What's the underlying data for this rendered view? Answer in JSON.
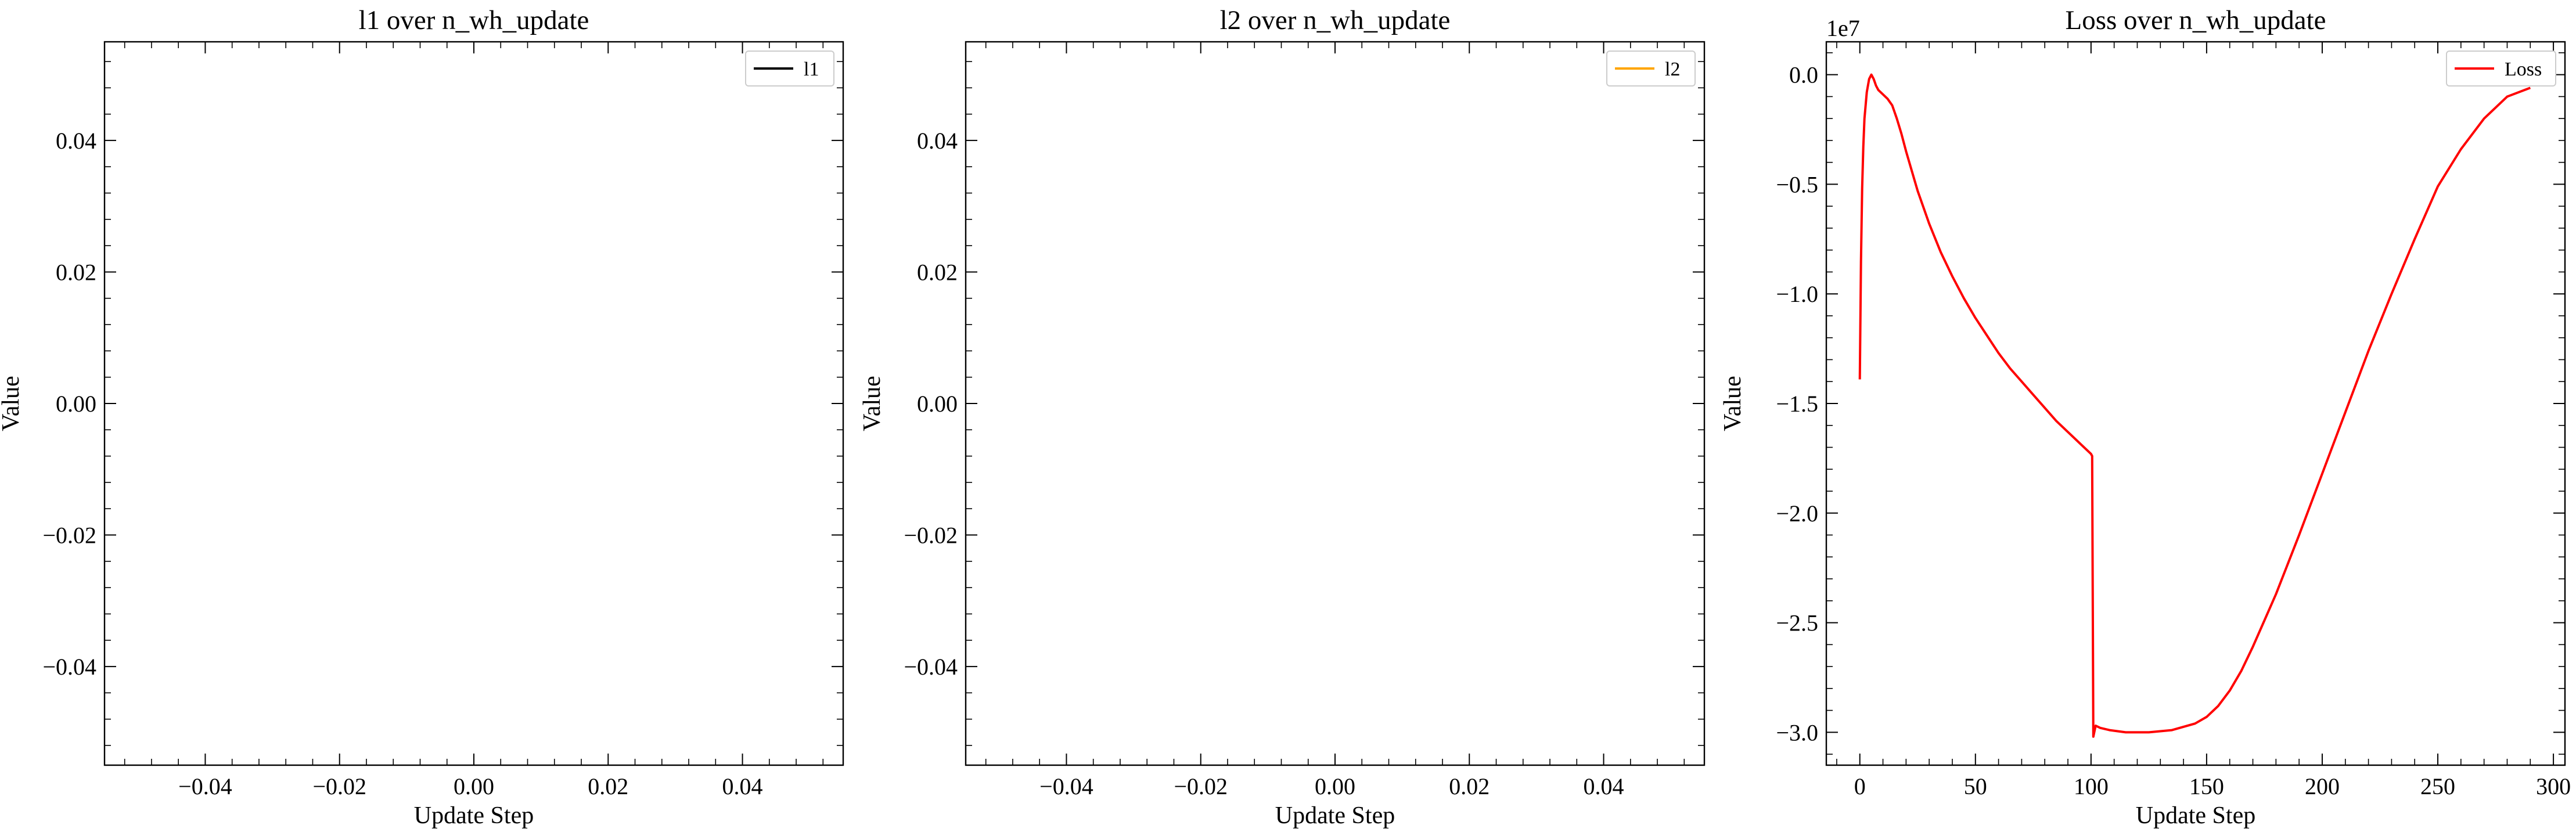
{
  "chart_data": [
    {
      "type": "line",
      "title": "l1 over n_wh_update",
      "xlabel": "Update Step",
      "ylabel": "Value",
      "xlim": [
        -0.055,
        0.055
      ],
      "ylim": [
        -0.055,
        0.055
      ],
      "xticks": [
        -0.04,
        -0.02,
        0.0,
        0.02,
        0.04
      ],
      "xtick_labels": [
        "−0.04",
        "−0.02",
        "0.00",
        "0.02",
        "0.04"
      ],
      "yticks": [
        -0.04,
        -0.02,
        0.0,
        0.02,
        0.04
      ],
      "ytick_labels": [
        "−0.04",
        "−0.02",
        "0.00",
        "0.02",
        "0.04"
      ],
      "ytick_offset": "",
      "legend_position": "upper right",
      "series": [
        {
          "name": "l1",
          "color": "#000000",
          "x": [],
          "y": []
        }
      ]
    },
    {
      "type": "line",
      "title": "l2 over n_wh_update",
      "xlabel": "Update Step",
      "ylabel": "Value",
      "xlim": [
        -0.055,
        0.055
      ],
      "ylim": [
        -0.055,
        0.055
      ],
      "xticks": [
        -0.04,
        -0.02,
        0.0,
        0.02,
        0.04
      ],
      "xtick_labels": [
        "−0.04",
        "−0.02",
        "0.00",
        "0.02",
        "0.04"
      ],
      "yticks": [
        -0.04,
        -0.02,
        0.0,
        0.02,
        0.04
      ],
      "ytick_labels": [
        "−0.04",
        "−0.02",
        "0.00",
        "0.02",
        "0.04"
      ],
      "ytick_offset": "",
      "legend_position": "upper right",
      "series": [
        {
          "name": "l2",
          "color": "#ffa500",
          "x": [],
          "y": []
        }
      ]
    },
    {
      "type": "line",
      "title": "Loss over n_wh_update",
      "xlabel": "Update Step",
      "ylabel": "Value",
      "xlim": [
        -14.5,
        305
      ],
      "ylim": [
        -31.5,
        1.5
      ],
      "xticks": [
        0,
        50,
        100,
        150,
        200,
        250,
        300
      ],
      "xtick_labels": [
        "0",
        "50",
        "100",
        "150",
        "200",
        "250",
        "300"
      ],
      "yticks": [
        0,
        -5,
        -10,
        -15,
        -20,
        -25,
        -30
      ],
      "ytick_labels": [
        "0.0",
        "−0.5",
        "−1.0",
        "−1.5",
        "−2.0",
        "−2.5",
        "−3.0"
      ],
      "ytick_offset": "1e7",
      "y_units": "×1e6",
      "legend_position": "upper right",
      "series": [
        {
          "name": "Loss",
          "color": "#ff0000",
          "x": [
            0,
            0.5,
            1,
            1.5,
            2,
            3,
            4,
            5,
            6,
            7,
            8,
            10,
            12,
            14,
            16,
            18,
            20,
            25,
            30,
            35,
            40,
            45,
            50,
            55,
            60,
            65,
            70,
            75,
            80,
            85,
            90,
            95,
            100,
            100.5,
            101,
            102,
            104,
            108,
            115,
            125,
            135,
            145,
            150,
            155,
            160,
            165,
            170,
            175,
            180,
            190,
            200,
            210,
            220,
            230,
            240,
            250,
            260,
            270,
            280,
            290
          ],
          "y": [
            -13.9,
            -8.5,
            -5.2,
            -3.3,
            -2.0,
            -0.8,
            -0.2,
            0.0,
            -0.2,
            -0.5,
            -0.7,
            -0.9,
            -1.1,
            -1.4,
            -2.0,
            -2.7,
            -3.5,
            -5.3,
            -6.8,
            -8.1,
            -9.2,
            -10.2,
            -11.1,
            -11.9,
            -12.7,
            -13.4,
            -14.0,
            -14.6,
            -15.2,
            -15.8,
            -16.3,
            -16.8,
            -17.3,
            -17.4,
            -30.2,
            -29.7,
            -29.8,
            -29.9,
            -30.0,
            -30.0,
            -29.9,
            -29.6,
            -29.3,
            -28.8,
            -28.1,
            -27.2,
            -26.1,
            -24.9,
            -23.7,
            -21.0,
            -18.2,
            -15.4,
            -12.6,
            -10.0,
            -7.5,
            -5.1,
            -3.4,
            -2.0,
            -1.0,
            -0.6
          ]
        }
      ]
    }
  ]
}
